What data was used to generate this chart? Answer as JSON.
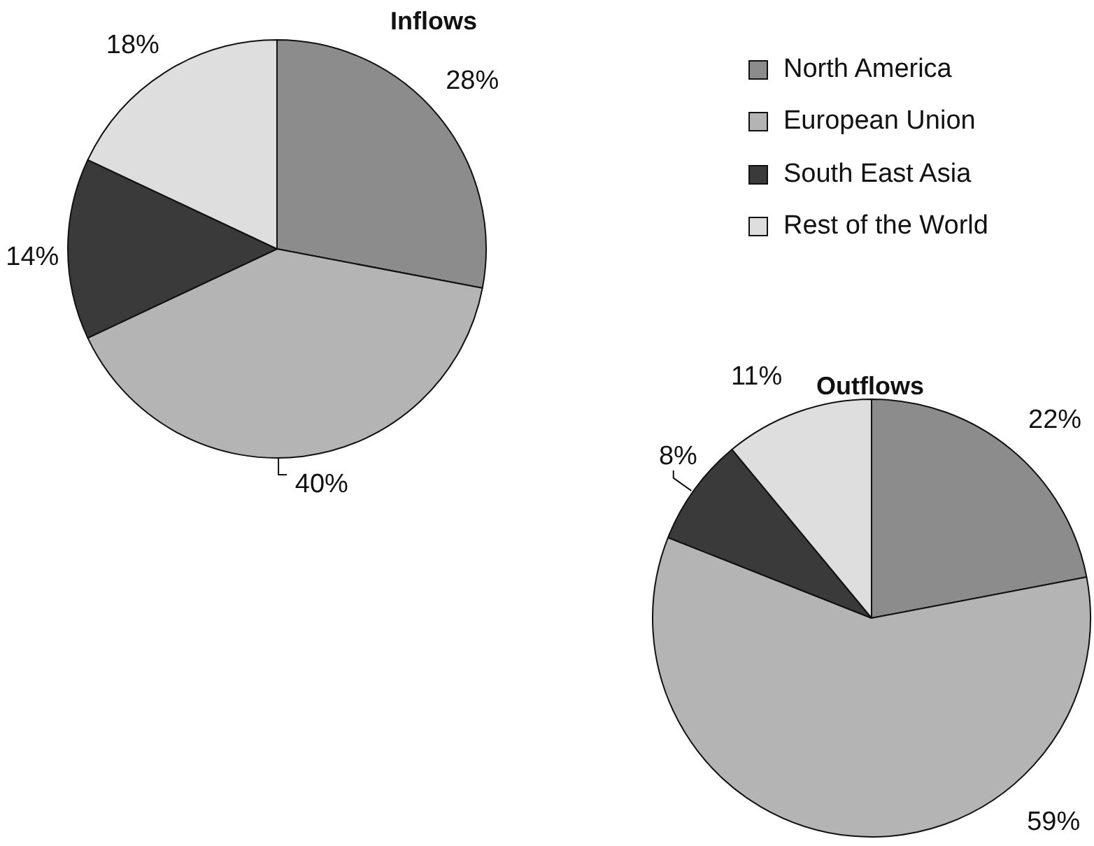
{
  "chart_data": [
    {
      "type": "pie",
      "title": "Inflows",
      "categories": [
        "North America",
        "European Union",
        "South East Asia",
        "Rest of the World"
      ],
      "values": [
        28,
        40,
        14,
        18
      ],
      "colors": [
        "#8c8c8c",
        "#b4b4b4",
        "#3a3a3a",
        "#dedede"
      ],
      "value_labels": [
        "28%",
        "40%",
        "14%",
        "18%"
      ],
      "legend": "right"
    },
    {
      "type": "pie",
      "title": "Outflows",
      "categories": [
        null,
        null,
        null,
        null
      ],
      "values": [
        22,
        59,
        8,
        11
      ],
      "colors": [
        "#8c8c8c",
        "#b4b4b4",
        "#3a3a3a",
        "#dedede"
      ],
      "value_labels": [
        "22%",
        "59%",
        "8%",
        "11%"
      ]
    }
  ]
}
